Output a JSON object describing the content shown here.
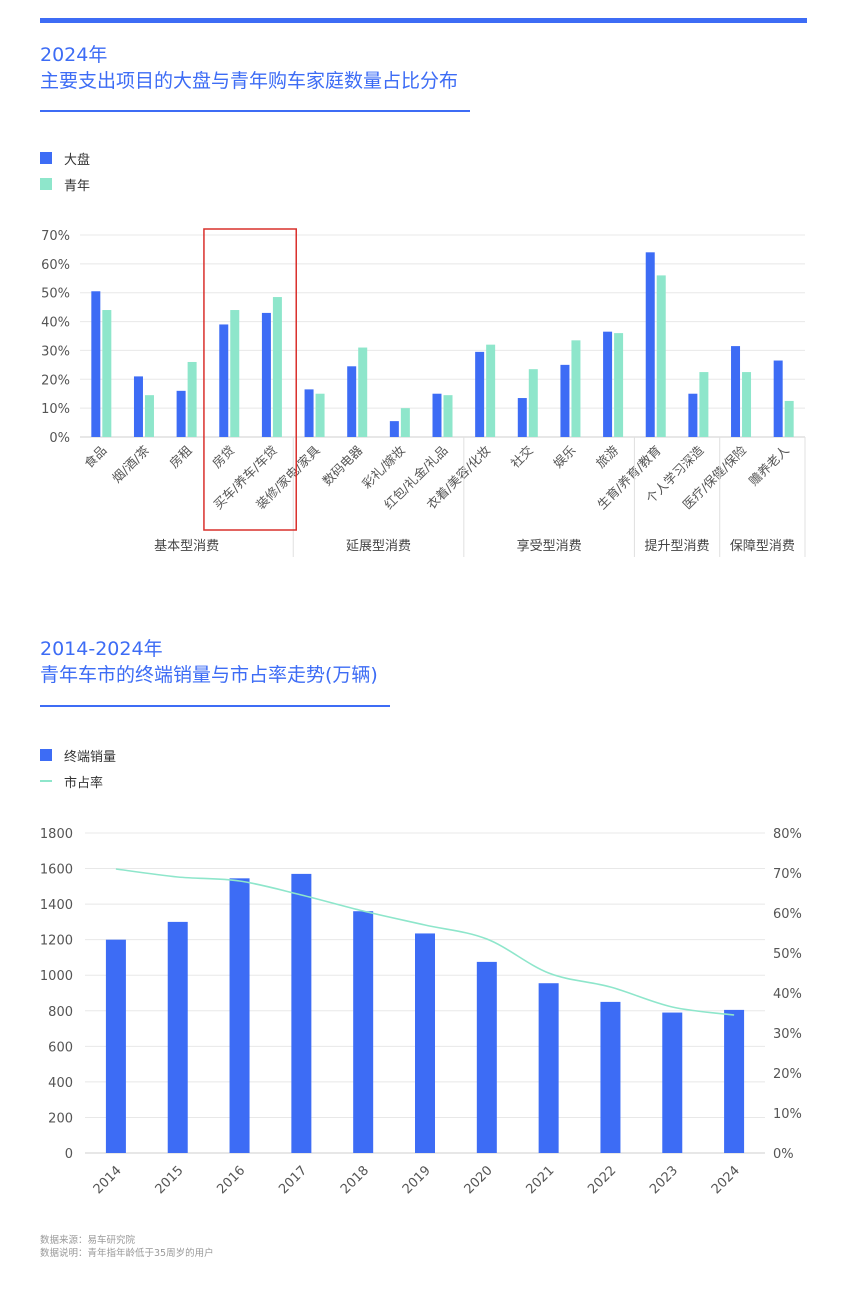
{
  "colors": {
    "accent": "#3d6cf5",
    "overall": "#3d6cf5",
    "youth": "#8ee6cb",
    "line": "#8ee6cb",
    "highlight": "#d9302c"
  },
  "chart1": {
    "title_line1": "2024年",
    "title_line2": "主要支出项目的大盘与青年购车家庭数量占比分布",
    "legend": [
      "大盘",
      "青年"
    ]
  },
  "chart2": {
    "title_line1": "2014-2024年",
    "title_line2": "青年车市的终端销量与市占率走势(万辆)",
    "legend": [
      "终端销量",
      "市占率"
    ]
  },
  "footer": {
    "source": "数据来源：易车研究院",
    "note": "数据说明：青年指年龄低于35周岁的用户"
  },
  "chart_data": [
    {
      "type": "bar",
      "categories": [
        "食品",
        "烟/酒/茶",
        "房租",
        "房贷",
        "买车/养车/车贷",
        "装修/家电/家具",
        "数码电器",
        "彩礼/嫁妆",
        "红包/礼金/礼品",
        "衣着/美容/化妆",
        "社交",
        "娱乐",
        "旅游",
        "生育/养育/教育",
        "个人学习深造",
        "医疗/保健/保险",
        "赡养老人"
      ],
      "groups": [
        {
          "label": "基本型消费",
          "span": 5
        },
        {
          "label": "延展型消费",
          "span": 4
        },
        {
          "label": "享受型消费",
          "span": 4
        },
        {
          "label": "提升型消费",
          "span": 2
        },
        {
          "label": "保障型消费",
          "span": 2
        }
      ],
      "series": [
        {
          "name": "大盘",
          "values": [
            50.5,
            21,
            16,
            39,
            43,
            16.5,
            24.5,
            5.5,
            15,
            29.5,
            13.5,
            25,
            36.5,
            64,
            15,
            31.5,
            26.5
          ]
        },
        {
          "name": "青年",
          "values": [
            44,
            14.5,
            26,
            44,
            48.5,
            15,
            31,
            10,
            14.5,
            32,
            23.5,
            33.5,
            36,
            56,
            22.5,
            22.5,
            12.5
          ]
        }
      ],
      "y_ticks": [
        "0%",
        "10%",
        "20%",
        "30%",
        "40%",
        "50%",
        "60%",
        "70%"
      ],
      "ylim": [
        0,
        70
      ],
      "highlighted_categories": [
        "房贷",
        "买车/养车/车贷"
      ],
      "grid": true
    },
    {
      "type": "bar",
      "x": [
        "2014",
        "2015",
        "2016",
        "2017",
        "2018",
        "2019",
        "2020",
        "2021",
        "2022",
        "2023",
        "2024"
      ],
      "series": [
        {
          "name": "终端销量",
          "type": "bar",
          "axis": "left",
          "values": [
            1200,
            1300,
            1545,
            1570,
            1360,
            1235,
            1075,
            955,
            850,
            790,
            805
          ]
        },
        {
          "name": "市占率",
          "type": "line",
          "axis": "right",
          "values": [
            71,
            69,
            68,
            64.5,
            60.5,
            57,
            53.5,
            45,
            41.5,
            36.5,
            34.5
          ]
        }
      ],
      "y_left_ticks": [
        "0",
        "200",
        "400",
        "600",
        "800",
        "1000",
        "1200",
        "1400",
        "1600",
        "1800"
      ],
      "y_right_ticks": [
        "0%",
        "10%",
        "20%",
        "30%",
        "40%",
        "50%",
        "60%",
        "70%",
        "80%"
      ],
      "ylim_left": [
        0,
        1800
      ],
      "ylim_right": [
        0,
        80
      ],
      "grid": true
    }
  ]
}
